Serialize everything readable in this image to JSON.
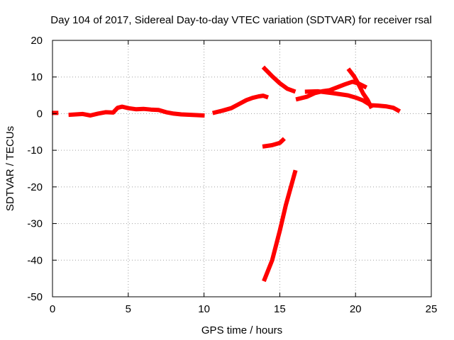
{
  "chart_data": {
    "type": "scatter",
    "title": "Day 104 of 2017, Sidereal Day-to-day VTEC variation (SDTVAR) for receiver rsal",
    "xlabel": "GPS time / hours",
    "ylabel": "SDTVAR / TECUs",
    "xlim": [
      0,
      25
    ],
    "ylim": [
      -50,
      20
    ],
    "xticks": [
      0,
      5,
      10,
      15,
      20,
      25
    ],
    "yticks": [
      -50,
      -40,
      -30,
      -20,
      -10,
      0,
      10,
      20
    ],
    "grid": true,
    "marker_color": "#ff0000",
    "series": [
      {
        "name": "start-point",
        "points": [
          [
            0.1,
            0.2
          ],
          [
            0.25,
            0.2
          ]
        ]
      },
      {
        "name": "arc-early",
        "points": [
          [
            1.2,
            -0.3
          ],
          [
            2.0,
            -0.1
          ],
          [
            2.5,
            -0.5
          ],
          [
            3.0,
            0.0
          ],
          [
            3.5,
            0.4
          ],
          [
            4.0,
            0.3
          ],
          [
            4.3,
            1.6
          ],
          [
            4.6,
            1.9
          ],
          [
            5.0,
            1.5
          ],
          [
            5.5,
            1.2
          ],
          [
            6.0,
            1.3
          ],
          [
            6.5,
            1.1
          ],
          [
            7.0,
            1.0
          ],
          [
            7.5,
            0.4
          ],
          [
            8.0,
            0.0
          ],
          [
            8.5,
            -0.2
          ],
          [
            9.0,
            -0.3
          ],
          [
            9.5,
            -0.4
          ],
          [
            9.9,
            -0.5
          ]
        ]
      },
      {
        "name": "arc-morning",
        "points": [
          [
            10.7,
            0.3
          ],
          [
            11.2,
            0.8
          ],
          [
            11.8,
            1.5
          ],
          [
            12.3,
            2.6
          ],
          [
            12.8,
            3.7
          ],
          [
            13.2,
            4.3
          ],
          [
            13.6,
            4.7
          ],
          [
            13.9,
            4.9
          ],
          [
            14.1,
            4.6
          ]
        ]
      },
      {
        "name": "arc-descending",
        "points": [
          [
            14.0,
            12.3
          ],
          [
            14.5,
            10.2
          ],
          [
            15.0,
            8.3
          ],
          [
            15.5,
            6.8
          ],
          [
            15.9,
            6.2
          ]
        ]
      },
      {
        "name": "arc-short",
        "points": [
          [
            14.0,
            -8.9
          ],
          [
            14.5,
            -8.6
          ],
          [
            15.0,
            -8.0
          ],
          [
            15.2,
            -7.2
          ]
        ]
      },
      {
        "name": "arc-steep",
        "points": [
          [
            14.0,
            -45.2
          ],
          [
            14.5,
            -40.0
          ],
          [
            15.0,
            -32.0
          ],
          [
            15.4,
            -25.0
          ],
          [
            15.8,
            -19.0
          ],
          [
            16.0,
            -16.0
          ]
        ]
      },
      {
        "name": "arc-afternoon",
        "points": [
          [
            16.2,
            4.0
          ],
          [
            16.8,
            4.6
          ],
          [
            17.3,
            5.6
          ],
          [
            17.8,
            6.1
          ],
          [
            18.3,
            6.4
          ],
          [
            18.8,
            7.2
          ],
          [
            19.3,
            8.0
          ],
          [
            19.8,
            8.7
          ],
          [
            20.2,
            8.2
          ],
          [
            20.6,
            7.4
          ]
        ]
      },
      {
        "name": "arc-high",
        "points": [
          [
            19.6,
            11.8
          ],
          [
            19.9,
            10.2
          ],
          [
            20.2,
            8.0
          ],
          [
            20.5,
            5.5
          ],
          [
            20.8,
            3.7
          ],
          [
            21.0,
            2.0
          ]
        ]
      },
      {
        "name": "arc-late",
        "points": [
          [
            16.8,
            6.0
          ],
          [
            17.5,
            6.1
          ],
          [
            18.5,
            5.6
          ],
          [
            19.5,
            5.0
          ],
          [
            20.0,
            4.4
          ],
          [
            20.5,
            3.6
          ],
          [
            21.0,
            2.3
          ],
          [
            21.5,
            2.2
          ],
          [
            22.0,
            2.0
          ],
          [
            22.5,
            1.6
          ],
          [
            22.8,
            0.9
          ]
        ]
      }
    ]
  }
}
